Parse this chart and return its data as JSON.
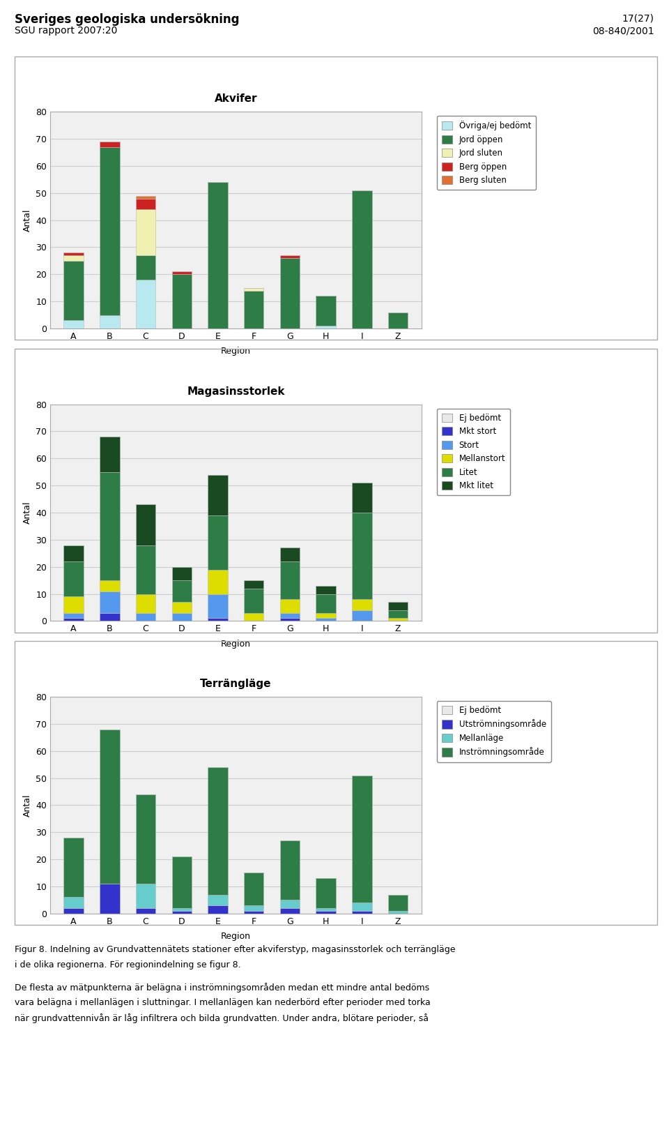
{
  "regions": [
    "A",
    "B",
    "C",
    "D",
    "E",
    "F",
    "G",
    "H",
    "I",
    "Z"
  ],
  "chart1_title": "Akvifer",
  "chart1_ylabel": "Antal",
  "chart1_xlabel": "Region",
  "chart1_ylim": [
    0,
    80
  ],
  "chart1_yticks": [
    0,
    10,
    20,
    30,
    40,
    50,
    60,
    70,
    80
  ],
  "chart1_categories": [
    "Övriga/ej bedömt",
    "Jord öppen",
    "Jord sluten",
    "Berg öppen",
    "Berg sluten"
  ],
  "chart1_colors": [
    "#b8e8f0",
    "#2e7d46",
    "#f0f0b0",
    "#cc2222",
    "#e07030"
  ],
  "chart1_data": {
    "Övriga/ej bedömt": [
      3,
      5,
      18,
      0,
      0,
      0,
      0,
      1,
      0,
      0
    ],
    "Jord öppen": [
      22,
      62,
      9,
      20,
      54,
      14,
      26,
      11,
      51,
      6
    ],
    "Jord sluten": [
      2,
      0,
      17,
      0,
      0,
      1,
      0,
      0,
      0,
      0
    ],
    "Berg öppen": [
      1,
      2,
      4,
      1,
      0,
      0,
      1,
      0,
      0,
      0
    ],
    "Berg sluten": [
      0,
      0,
      1,
      0,
      0,
      0,
      0,
      0,
      0,
      0
    ]
  },
  "chart2_title": "Magasinsstorlek",
  "chart2_ylabel": "Antal",
  "chart2_xlabel": "Region",
  "chart2_ylim": [
    0,
    80
  ],
  "chart2_yticks": [
    0,
    10,
    20,
    30,
    40,
    50,
    60,
    70,
    80
  ],
  "chart2_categories": [
    "Ej bedömt",
    "Mkt stort",
    "Stort",
    "Mellanstort",
    "Litet",
    "Mkt litet"
  ],
  "chart2_colors": [
    "#e8e8e8",
    "#3333cc",
    "#5599ee",
    "#dddd00",
    "#2e7d46",
    "#1a4a22"
  ],
  "chart2_data": {
    "Ej bedömt": [
      0,
      0,
      0,
      0,
      0,
      0,
      0,
      0,
      0,
      0
    ],
    "Mkt stort": [
      1,
      3,
      0,
      0,
      1,
      0,
      1,
      0,
      0,
      0
    ],
    "Stort": [
      2,
      8,
      3,
      3,
      9,
      0,
      2,
      1,
      4,
      0
    ],
    "Mellanstort": [
      6,
      4,
      7,
      4,
      9,
      3,
      5,
      2,
      4,
      1
    ],
    "Litet": [
      13,
      40,
      18,
      8,
      20,
      9,
      14,
      7,
      32,
      3
    ],
    "Mkt litet": [
      6,
      13,
      15,
      5,
      15,
      3,
      5,
      3,
      11,
      3
    ]
  },
  "chart3_title": "Terrängläge",
  "chart3_ylabel": "Antal",
  "chart3_xlabel": "Region",
  "chart3_ylim": [
    0,
    80
  ],
  "chart3_yticks": [
    0,
    10,
    20,
    30,
    40,
    50,
    60,
    70,
    80
  ],
  "chart3_categories": [
    "Ej bedömt",
    "Utströmningsområde",
    "Mellanläge",
    "Inströmningsområde"
  ],
  "chart3_colors": [
    "#e8e8e8",
    "#3333cc",
    "#66cccc",
    "#2e7d46"
  ],
  "chart3_data": {
    "Ej bedömt": [
      0,
      0,
      0,
      0,
      0,
      0,
      0,
      0,
      0,
      0
    ],
    "Utströmningsområde": [
      2,
      11,
      2,
      1,
      3,
      1,
      2,
      1,
      1,
      0
    ],
    "Mellanläge": [
      4,
      0,
      9,
      1,
      4,
      2,
      3,
      1,
      3,
      1
    ],
    "Inströmningsområde": [
      22,
      57,
      33,
      19,
      47,
      12,
      22,
      11,
      47,
      6
    ]
  },
  "header_left": "Sveriges geologiska undersökning",
  "header_left2": "SGU rapport 2007:20",
  "header_right": "17(27)",
  "header_right2": "08-840/2001",
  "footer1": "Figur 8. Indelning av Grundvattennätets stationer efter akviferstyp, magasinsstorlek och terrängläge",
  "footer2": "i de olika regionerna. För regionindelning se figur 8.",
  "footer3": "",
  "footer4": "De flesta av mätpunkterna är belägna i inströmningsområden medan ett mindre antal bedöms",
  "footer5": "vara belägna i mellanlägen i sluttningar. I mellanlägen kan nederbörd efter perioder med torka",
  "footer6": "när grundvattennivån är låg infiltrera och bilda grundvatten. Under andra, blötare perioder, så",
  "bg_color": "#ffffff",
  "plot_bg_color": "#f0f0f0",
  "grid_color": "#cccccc",
  "border_color": "#aaaaaa"
}
